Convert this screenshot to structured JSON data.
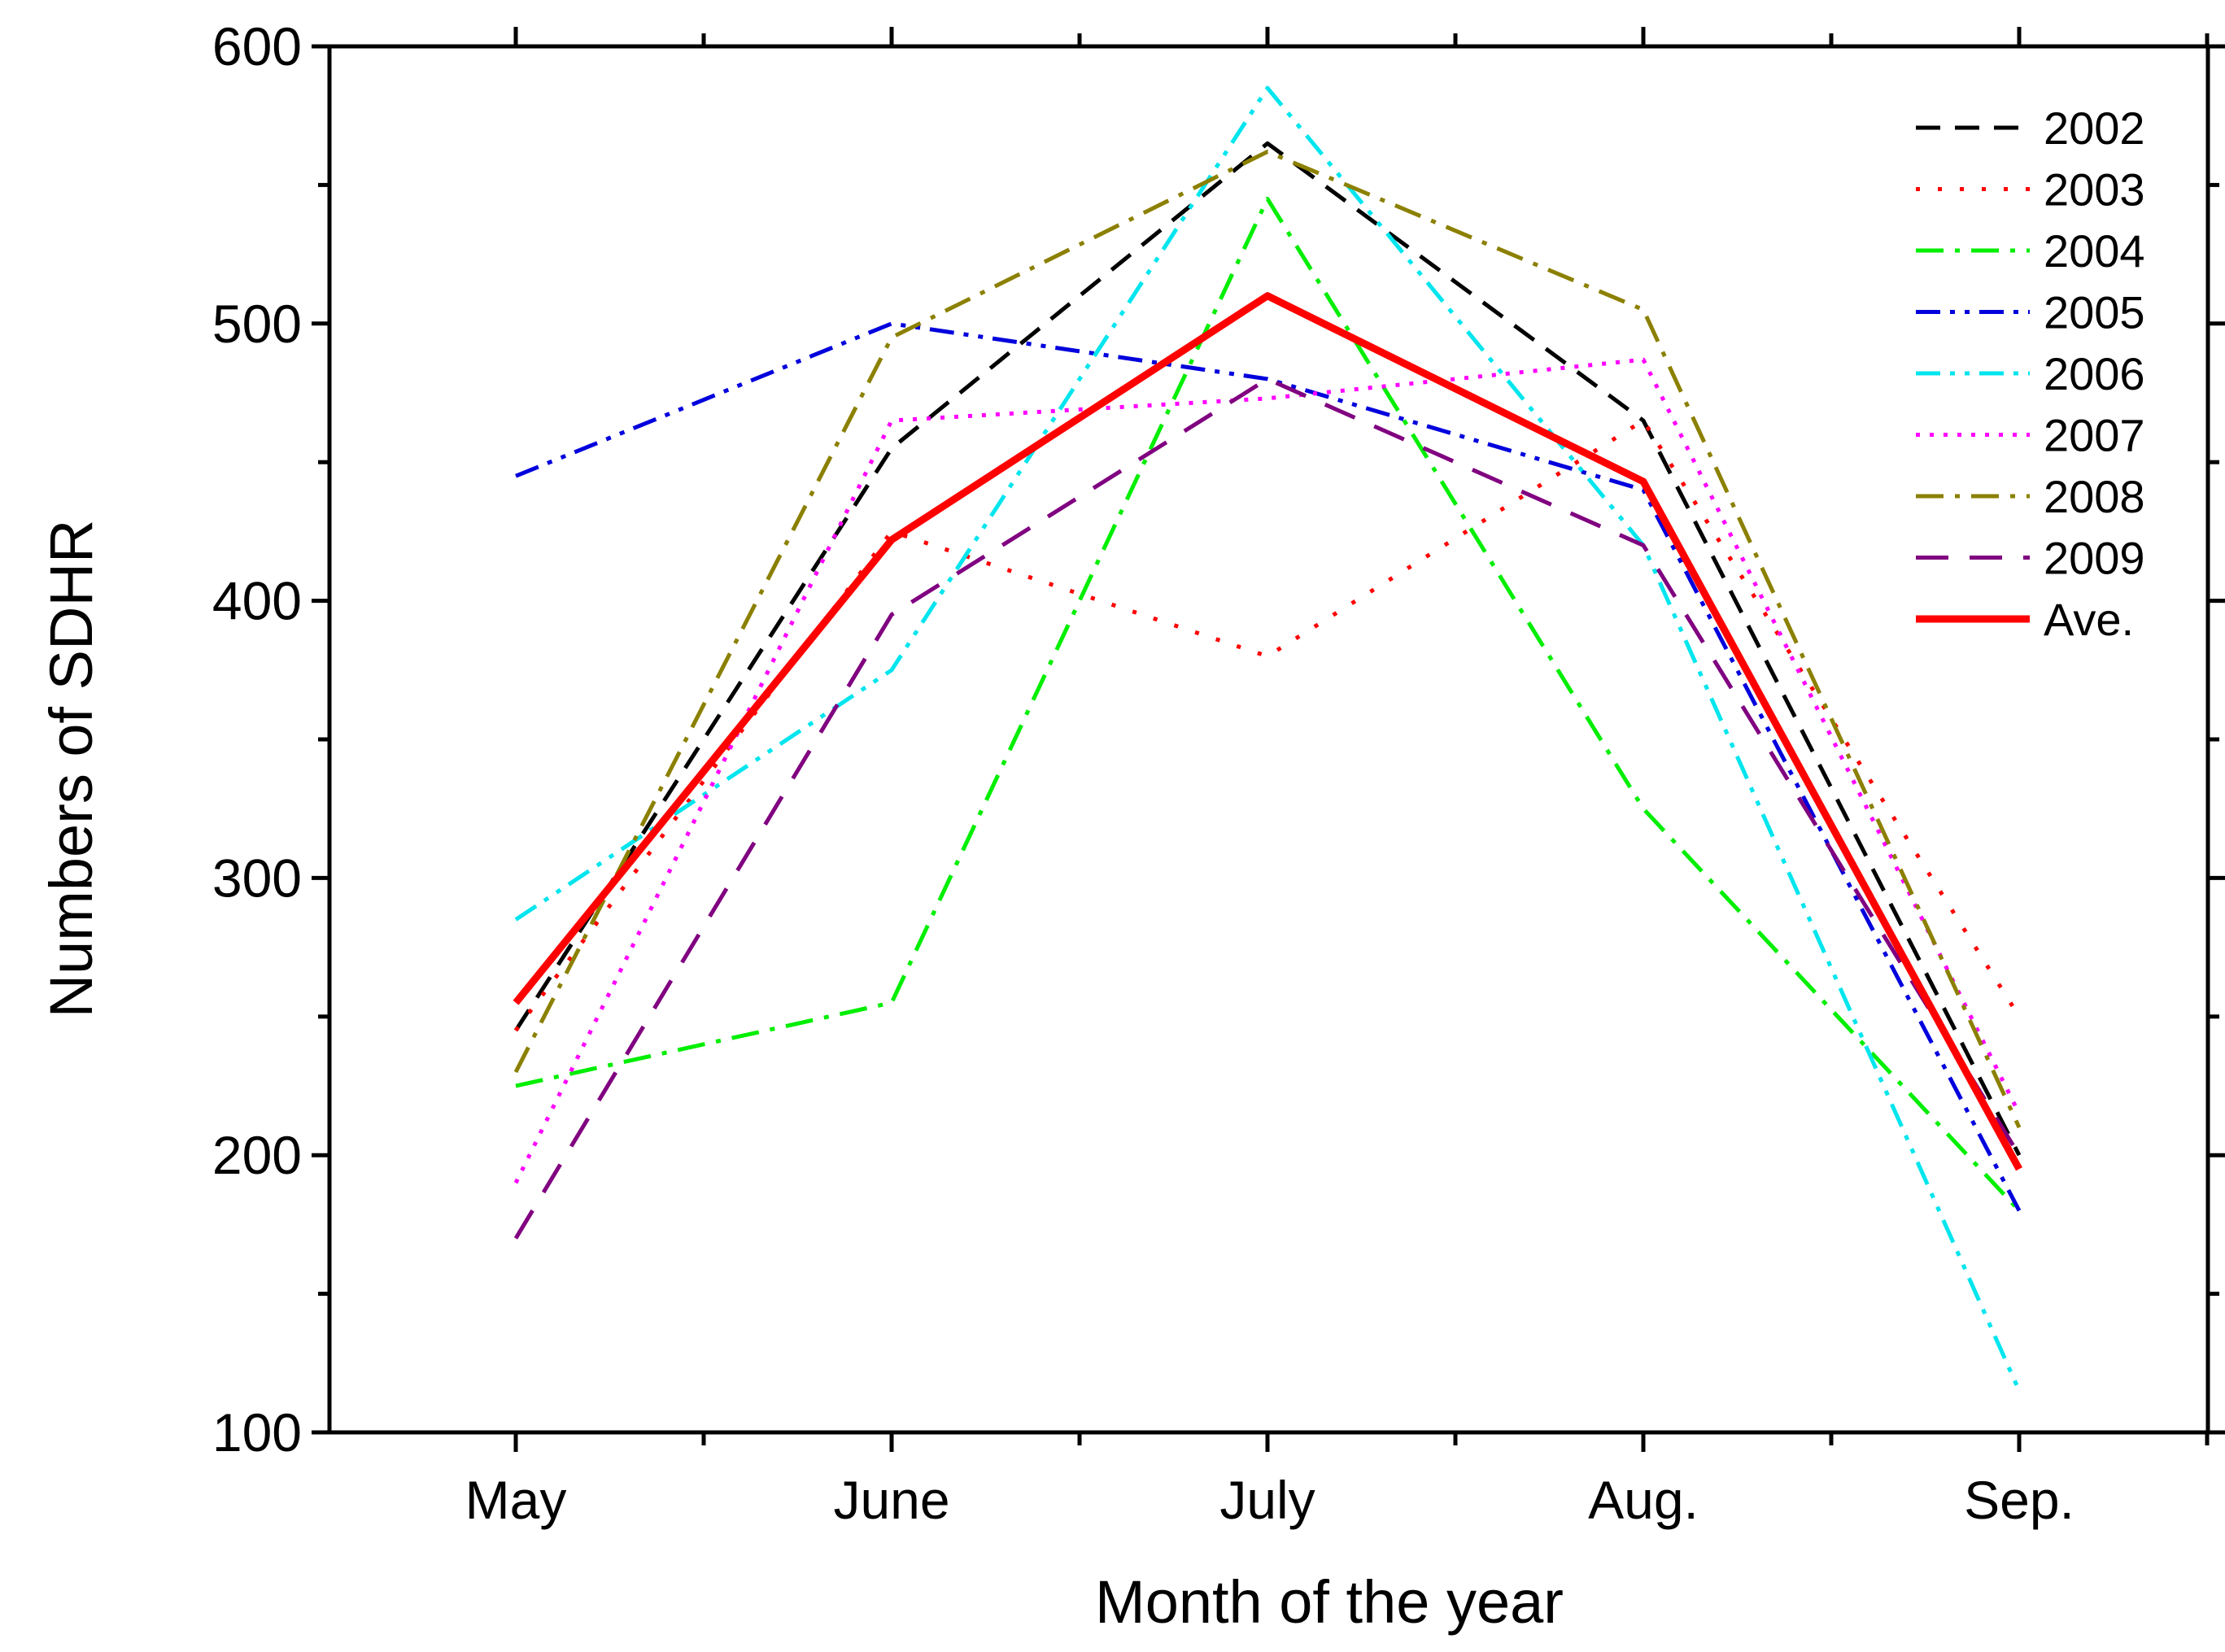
{
  "chart_data": {
    "type": "line",
    "title": "",
    "xlabel": "Month of the year",
    "ylabel": "Numbers of SDHR",
    "categories": [
      "May",
      "June",
      "July",
      "Aug.",
      "Sep."
    ],
    "ylim": [
      100,
      600
    ],
    "yticks": [
      100,
      200,
      300,
      400,
      500,
      600
    ],
    "grid": false,
    "legend_position": "top-right",
    "series": [
      {
        "name": "2002",
        "values": [
          245,
          455,
          565,
          465,
          200
        ],
        "color": "#000000",
        "style": "dash"
      },
      {
        "name": "2003",
        "values": [
          245,
          425,
          380,
          465,
          250
        ],
        "color": "#ff0000",
        "style": "dot"
      },
      {
        "name": "2004",
        "values": [
          225,
          255,
          545,
          325,
          180
        ],
        "color": "#00ee00",
        "style": "dashdot"
      },
      {
        "name": "2005",
        "values": [
          445,
          500,
          480,
          440,
          180
        ],
        "color": "#0000dd",
        "style": "dashdotdot"
      },
      {
        "name": "2006",
        "values": [
          285,
          375,
          585,
          420,
          115
        ],
        "color": "#00e5ee",
        "style": "dashdotdot"
      },
      {
        "name": "2007",
        "values": [
          190,
          465,
          473,
          487,
          215
        ],
        "color": "#ff00ff",
        "style": "shortdot"
      },
      {
        "name": "2008",
        "values": [
          230,
          495,
          562,
          505,
          210
        ],
        "color": "#8b8000",
        "style": "dashdot"
      },
      {
        "name": "2009",
        "values": [
          170,
          395,
          480,
          420,
          200
        ],
        "color": "#800080",
        "style": "longdash"
      },
      {
        "name": "Ave.",
        "values": [
          255,
          422,
          510,
          443,
          195
        ],
        "color": "#ff0000",
        "style": "solid"
      }
    ]
  }
}
